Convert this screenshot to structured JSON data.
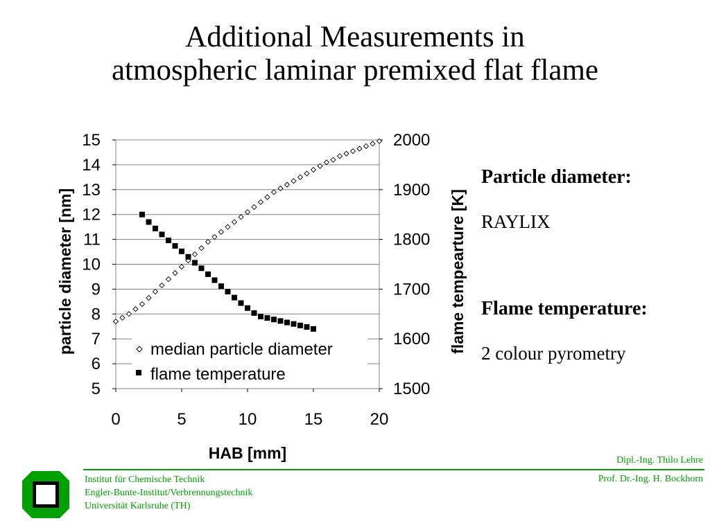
{
  "title": {
    "line1": "Additional Measurements in",
    "line2": "atmospheric laminar premixed flat flame"
  },
  "chart_data": {
    "type": "scatter",
    "xlabel": "HAB [mm]",
    "ylabel_left": "particle  diameter [nm]",
    "ylabel_right": "flame tempearture [K]",
    "xlim": [
      0,
      20
    ],
    "ylim_left": [
      5,
      15
    ],
    "ylim_right": [
      1500,
      2000
    ],
    "x_ticks": [
      "0",
      "5",
      "10",
      "15",
      "20"
    ],
    "y_ticks_left": [
      "5",
      "6",
      "7",
      "8",
      "9",
      "10",
      "11",
      "12",
      "13",
      "14",
      "15"
    ],
    "y_ticks_right": [
      "1500",
      "1600",
      "1700",
      "1800",
      "1900",
      "2000"
    ],
    "grid": "horizontal",
    "legend_position": "bottom-center",
    "series": [
      {
        "name": "median particle diameter",
        "axis": "left",
        "marker": "open-diamond",
        "x": [
          0,
          0.5,
          1,
          1.5,
          2,
          2.5,
          3,
          3.5,
          4,
          4.5,
          5,
          5.5,
          6,
          6.5,
          7,
          7.5,
          8,
          8.5,
          9,
          9.5,
          10,
          10.5,
          11,
          11.5,
          12,
          12.5,
          13,
          13.5,
          14,
          14.5,
          15,
          15.5,
          16,
          16.5,
          17,
          17.5,
          18,
          18.5,
          19,
          19.5,
          20
        ],
        "y": [
          7.7,
          7.85,
          8.0,
          8.2,
          8.4,
          8.65,
          8.9,
          9.15,
          9.4,
          9.65,
          9.9,
          10.15,
          10.4,
          10.65,
          10.9,
          11.1,
          11.3,
          11.5,
          11.7,
          11.9,
          12.1,
          12.3,
          12.5,
          12.7,
          12.9,
          13.05,
          13.2,
          13.35,
          13.5,
          13.65,
          13.8,
          13.95,
          14.1,
          14.2,
          14.35,
          14.45,
          14.55,
          14.65,
          14.75,
          14.85,
          14.95
        ]
      },
      {
        "name": "flame temperature",
        "axis": "right",
        "marker": "filled-square",
        "x": [
          2,
          2.5,
          3,
          3.5,
          4,
          4.5,
          5,
          5.5,
          6,
          6.5,
          7,
          7.5,
          8,
          8.5,
          9,
          9.5,
          10,
          10.5,
          11,
          11.5,
          12,
          12.5,
          13,
          13.5,
          14,
          14.5,
          15
        ],
        "y": [
          1850,
          1835,
          1822,
          1810,
          1798,
          1787,
          1776,
          1765,
          1753,
          1742,
          1730,
          1718,
          1706,
          1695,
          1683,
          1672,
          1662,
          1652,
          1645,
          1642,
          1639,
          1636,
          1633,
          1630,
          1627,
          1624,
          1620
        ]
      }
    ]
  },
  "side": {
    "particle_heading": "Particle diameter:",
    "particle_method": "RAYLIX",
    "flame_heading": "Flame temperature:",
    "flame_method": "2 colour pyrometry"
  },
  "footer": {
    "institute_lines": [
      "Institut für Chemische Technik",
      "Engler-Bunte-Institut/Verbrennungstechnik",
      "Universität Karlsruhe (TH)"
    ],
    "author1": "Dipl.-Ing. Thilo Lehre",
    "author2": "Prof. Dr.-Ing. H. Bockhorn",
    "logo_color": "#00a000",
    "line_color": "#00a000"
  }
}
